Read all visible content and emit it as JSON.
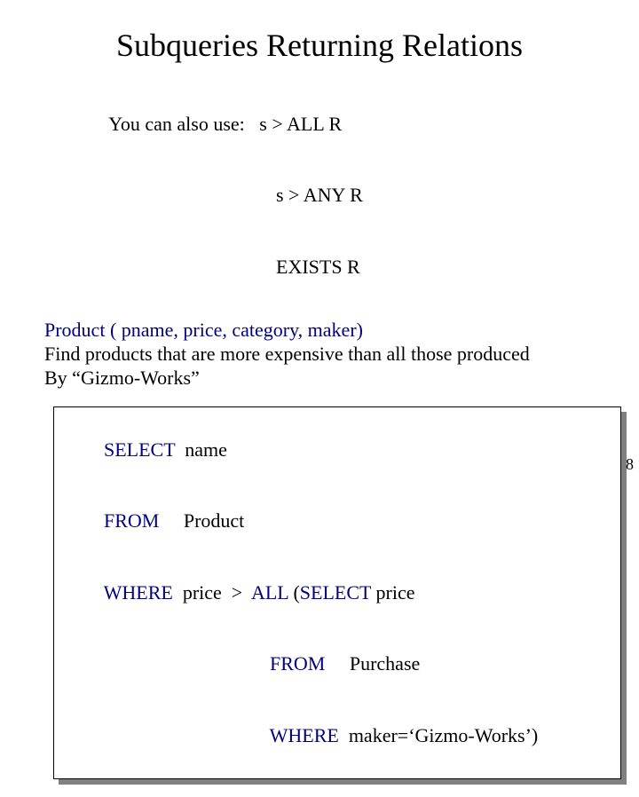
{
  "title": "Subqueries Returning Relations",
  "usage": {
    "lead": "You can also use:   ",
    "lines": [
      "s > ALL R",
      "s > ANY R",
      "EXISTS R"
    ]
  },
  "schema": {
    "relation": "Product ( pname,  price, category, maker)",
    "task1": "Find products that are more expensive than all those produced",
    "task2": "By “Gizmo-Works”"
  },
  "sql": {
    "kw_select": "SELECT",
    "select_cols": "  name",
    "kw_from": "FROM",
    "from_rel": "     Product",
    "kw_where": "WHERE",
    "where_left": "  price  >  ",
    "kw_all": "ALL",
    "sub_open": " (",
    "sub_kw_select": "SELECT",
    "sub_select_cols": " price",
    "sub_indent": "                                  ",
    "sub_kw_from": "FROM",
    "sub_from_rel": "     Purchase",
    "sub_kw_where": "WHERE",
    "sub_where_pred": "  maker=‘Gizmo-Works’)"
  },
  "page_number": "8",
  "colors": {
    "text": "#000000",
    "accent": "#000080",
    "background": "#ffffff",
    "shadow": "#808080",
    "border": "#000000"
  },
  "fonts": {
    "family": "Times New Roman",
    "title_size_pt": 28,
    "body_size_pt": 17
  }
}
